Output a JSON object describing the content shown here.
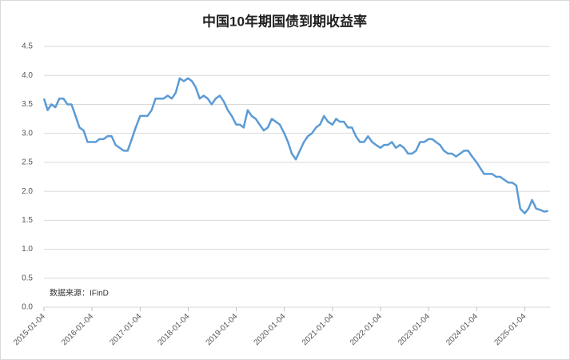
{
  "chart_data": {
    "type": "line",
    "title": "中国10年期国债到期收益率",
    "annotation": "数据来源：IFinD",
    "x": [
      "2015-01-04",
      "2015-02-01",
      "2015-03-01",
      "2015-04-01",
      "2015-05-01",
      "2015-06-01",
      "2015-07-01",
      "2015-08-01",
      "2015-09-01",
      "2015-10-01",
      "2015-11-01",
      "2015-12-01",
      "2016-01-04",
      "2016-02-01",
      "2016-03-01",
      "2016-04-01",
      "2016-05-01",
      "2016-06-01",
      "2016-07-01",
      "2016-08-01",
      "2016-09-01",
      "2016-10-01",
      "2016-11-01",
      "2016-12-01",
      "2017-01-04",
      "2017-02-01",
      "2017-03-01",
      "2017-04-01",
      "2017-05-01",
      "2017-06-01",
      "2017-07-01",
      "2017-08-01",
      "2017-09-01",
      "2017-10-01",
      "2017-11-01",
      "2017-12-01",
      "2018-01-04",
      "2018-02-01",
      "2018-03-01",
      "2018-04-01",
      "2018-05-01",
      "2018-06-01",
      "2018-07-01",
      "2018-08-01",
      "2018-09-01",
      "2018-10-01",
      "2018-11-01",
      "2018-12-01",
      "2019-01-04",
      "2019-02-01",
      "2019-03-01",
      "2019-04-01",
      "2019-05-01",
      "2019-06-01",
      "2019-07-01",
      "2019-08-01",
      "2019-09-01",
      "2019-10-01",
      "2019-11-01",
      "2019-12-01",
      "2020-01-04",
      "2020-02-01",
      "2020-03-01",
      "2020-04-01",
      "2020-05-01",
      "2020-06-01",
      "2020-07-01",
      "2020-08-01",
      "2020-09-01",
      "2020-10-01",
      "2020-11-01",
      "2020-12-01",
      "2021-01-04",
      "2021-02-01",
      "2021-03-01",
      "2021-04-01",
      "2021-05-01",
      "2021-06-01",
      "2021-07-01",
      "2021-08-01",
      "2021-09-01",
      "2021-10-01",
      "2021-11-01",
      "2021-12-01",
      "2022-01-04",
      "2022-02-01",
      "2022-03-01",
      "2022-04-01",
      "2022-05-01",
      "2022-06-01",
      "2022-07-01",
      "2022-08-01",
      "2022-09-01",
      "2022-10-01",
      "2022-11-01",
      "2022-12-01",
      "2023-01-04",
      "2023-02-01",
      "2023-03-01",
      "2023-04-01",
      "2023-05-01",
      "2023-06-01",
      "2023-07-01",
      "2023-08-01",
      "2023-09-01",
      "2023-10-01",
      "2023-11-01",
      "2023-12-01",
      "2024-01-04",
      "2024-02-01",
      "2024-03-01",
      "2024-04-01",
      "2024-05-01",
      "2024-06-01",
      "2024-07-01",
      "2024-08-01",
      "2024-09-01",
      "2024-10-01",
      "2024-11-01",
      "2024-12-01",
      "2025-01-04",
      "2025-02-01",
      "2025-03-01",
      "2025-04-01",
      "2025-05-01",
      "2025-06-01",
      "2025-07-01"
    ],
    "series": [
      {
        "name": "中国10年期国债到期收益率",
        "color": "#5b9bd5",
        "values": [
          3.6,
          3.4,
          3.5,
          3.45,
          3.6,
          3.6,
          3.5,
          3.5,
          3.3,
          3.1,
          3.05,
          2.85,
          2.85,
          2.85,
          2.9,
          2.9,
          2.95,
          2.95,
          2.8,
          2.75,
          2.7,
          2.7,
          2.9,
          3.1,
          3.3,
          3.3,
          3.3,
          3.4,
          3.6,
          3.6,
          3.6,
          3.65,
          3.6,
          3.7,
          3.95,
          3.9,
          3.95,
          3.9,
          3.8,
          3.6,
          3.65,
          3.6,
          3.5,
          3.6,
          3.65,
          3.55,
          3.4,
          3.3,
          3.15,
          3.15,
          3.1,
          3.4,
          3.3,
          3.25,
          3.15,
          3.05,
          3.1,
          3.25,
          3.2,
          3.15,
          3.0,
          2.85,
          2.65,
          2.55,
          2.7,
          2.85,
          2.95,
          3.0,
          3.1,
          3.15,
          3.3,
          3.2,
          3.15,
          3.25,
          3.2,
          3.2,
          3.1,
          3.1,
          2.95,
          2.85,
          2.85,
          2.95,
          2.85,
          2.8,
          2.75,
          2.8,
          2.8,
          2.85,
          2.75,
          2.8,
          2.75,
          2.65,
          2.65,
          2.7,
          2.85,
          2.85,
          2.9,
          2.9,
          2.85,
          2.8,
          2.7,
          2.65,
          2.65,
          2.6,
          2.65,
          2.7,
          2.7,
          2.6,
          2.5,
          2.4,
          2.3,
          2.3,
          2.3,
          2.25,
          2.25,
          2.2,
          2.15,
          2.15,
          2.1,
          1.7,
          1.62,
          1.7,
          1.85,
          1.7,
          1.68,
          1.65,
          1.66
        ]
      }
    ],
    "xlim": [
      "2015-01-04",
      "2025-07-15"
    ],
    "xticks": [
      "2015-01-04",
      "2016-01-04",
      "2017-01-04",
      "2018-01-04",
      "2019-01-04",
      "2020-01-04",
      "2021-01-04",
      "2022-01-04",
      "2023-01-04",
      "2024-01-04",
      "2025-01-04"
    ],
    "ylim": [
      0,
      4.5
    ],
    "yticks": [
      {
        "value": 0,
        "label": "0.0"
      },
      0.5,
      {
        "value": 1,
        "label": "1.0"
      },
      1.5,
      {
        "value": 2,
        "label": "2.0"
      },
      2.5,
      {
        "value": 3,
        "label": "3.0"
      },
      3.5,
      {
        "value": 4,
        "label": "4.0"
      },
      4.5
    ],
    "grid": true
  }
}
